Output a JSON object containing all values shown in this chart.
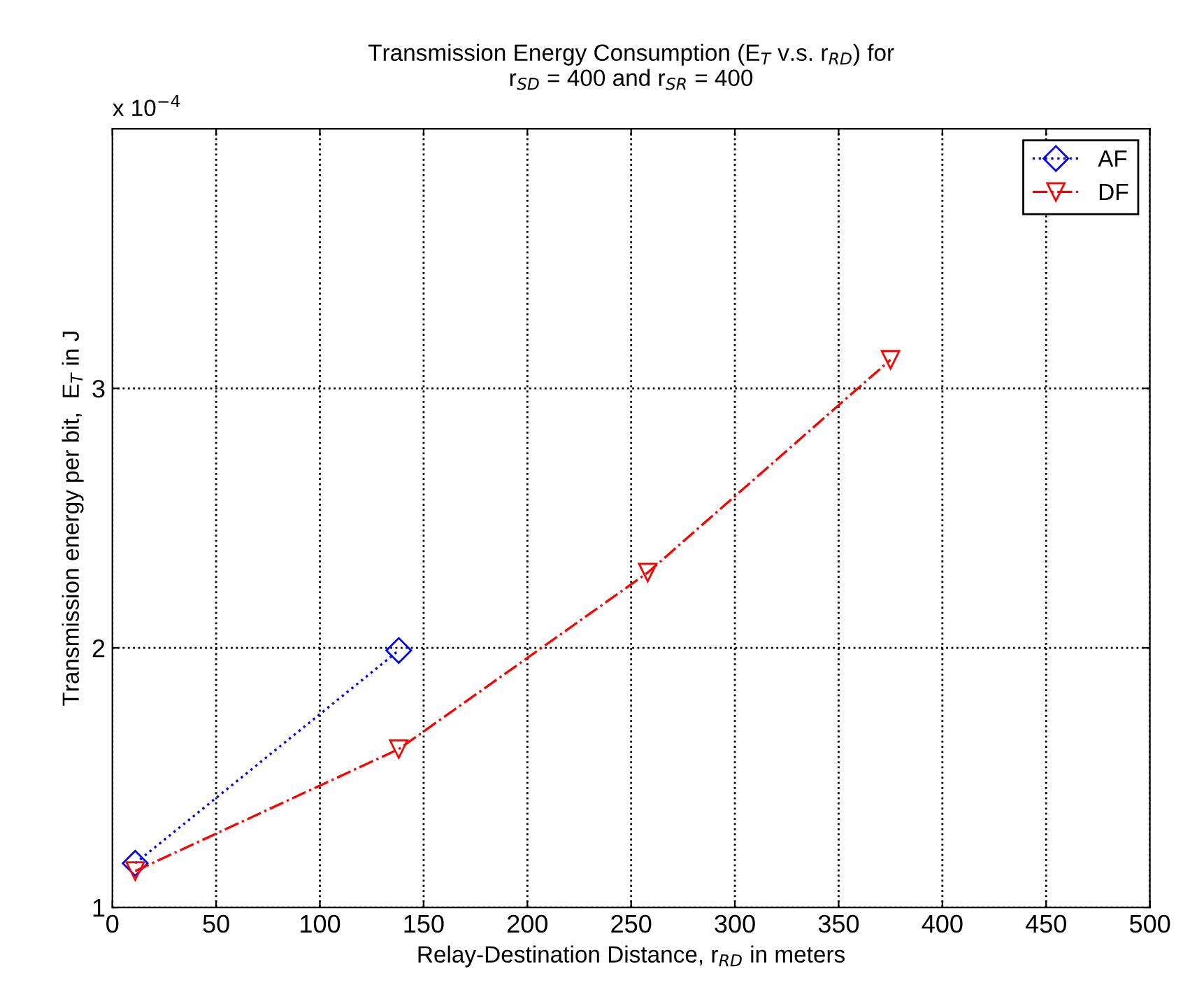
{
  "chart_data": {
    "type": "line",
    "title": "Transmission Energy Consumption (E$_{T}$ v.s. r$_{RD}$) for\nr$_{SD}$ = 400 and r$_{SR}$ = 400",
    "xlabel": "Relay-Destination Distance, r$_{RD}$ in meters",
    "ylabel": "Transmission energy per bit,  E$_{T}$ in J",
    "annotations": [
      "x 10$^{−4}$"
    ],
    "series": [
      {
        "name": "AF",
        "color": "#0000ff",
        "marker": "diamond",
        "line_style": "dotted",
        "x": [
          11,
          138
        ],
        "values": [
          1.17,
          1.99
        ]
      },
      {
        "name": "DF",
        "color": "#ff0000",
        "marker": "triangle",
        "line_style": "dashdot",
        "x": [
          11,
          138,
          258,
          375
        ],
        "values": [
          1.14,
          1.61,
          2.29,
          3.11
        ]
      }
    ],
    "xlim": [
      0,
      500
    ],
    "xticks": [
      0,
      50,
      100,
      150,
      200,
      250,
      300,
      350,
      400,
      450,
      500
    ],
    "ylim": [
      1,
      4
    ],
    "yticks": [
      1,
      2,
      3
    ],
    "grid": true,
    "legend": "top right"
  }
}
